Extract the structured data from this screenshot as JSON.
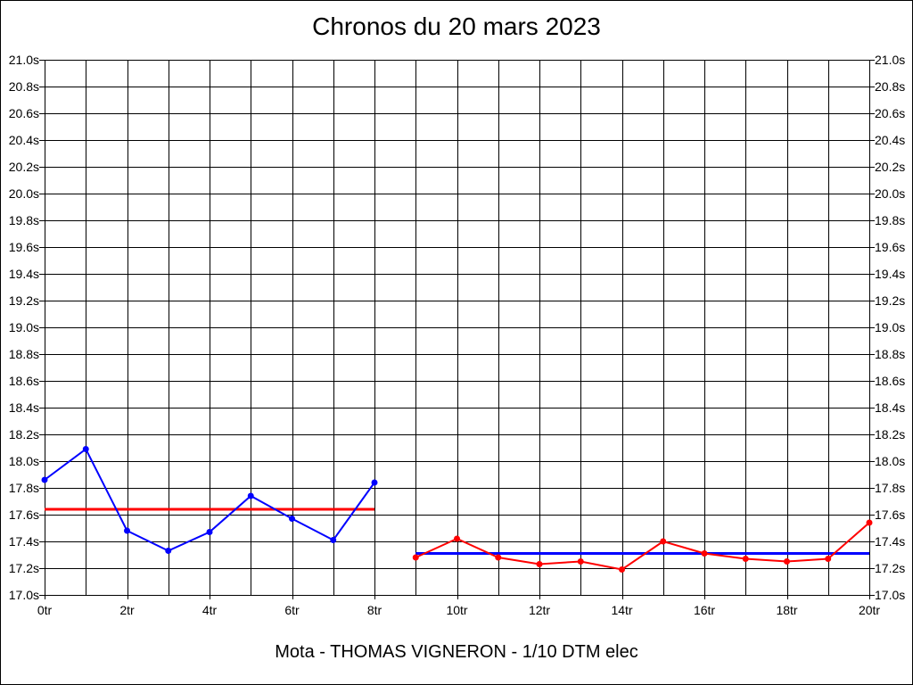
{
  "chart_data": {
    "type": "line",
    "title": "Chronos du 20 mars 2023",
    "subtitle": "Mota - THOMAS VIGNERON - 1/10 DTM elec",
    "xlim": [
      0,
      20
    ],
    "ylim": [
      17.0,
      21.0
    ],
    "grid": true,
    "y_ticks": [
      "17.0s",
      "17.2s",
      "17.4s",
      "17.6s",
      "17.8s",
      "18.0s",
      "18.2s",
      "18.4s",
      "18.6s",
      "18.8s",
      "19.0s",
      "19.2s",
      "19.4s",
      "19.6s",
      "19.8s",
      "20.0s",
      "20.2s",
      "20.4s",
      "20.6s",
      "20.8s",
      "21.0s"
    ],
    "y_tick_values": [
      17.0,
      17.2,
      17.4,
      17.6,
      17.8,
      18.0,
      18.2,
      18.4,
      18.6,
      18.8,
      19.0,
      19.2,
      19.4,
      19.6,
      19.8,
      20.0,
      20.2,
      20.4,
      20.6,
      20.8,
      21.0
    ],
    "x_ticks": [
      "0tr",
      "2tr",
      "4tr",
      "6tr",
      "8tr",
      "10tr",
      "12tr",
      "14tr",
      "16tr",
      "18tr",
      "20tr"
    ],
    "x_tick_values": [
      0,
      2,
      4,
      6,
      8,
      10,
      12,
      14,
      16,
      18,
      20
    ],
    "series": [
      {
        "color": "#0000ff",
        "x": [
          0,
          1,
          2,
          3,
          4,
          5,
          6,
          7,
          8
        ],
        "y": [
          17.86,
          18.09,
          17.48,
          17.33,
          17.47,
          17.74,
          17.57,
          17.41,
          17.84
        ]
      },
      {
        "color": "#ff0000",
        "x": [
          9,
          10,
          11,
          12,
          13,
          14,
          15,
          16,
          17,
          18,
          19,
          20
        ],
        "y": [
          17.28,
          17.42,
          17.28,
          17.23,
          17.25,
          17.19,
          17.4,
          17.31,
          17.27,
          17.25,
          17.27,
          17.54
        ]
      }
    ],
    "average_lines": [
      {
        "color": "#ff0000",
        "x": [
          0,
          8
        ],
        "y": 17.64
      },
      {
        "color": "#0000ff",
        "x": [
          9,
          20
        ],
        "y": 17.31
      }
    ]
  }
}
